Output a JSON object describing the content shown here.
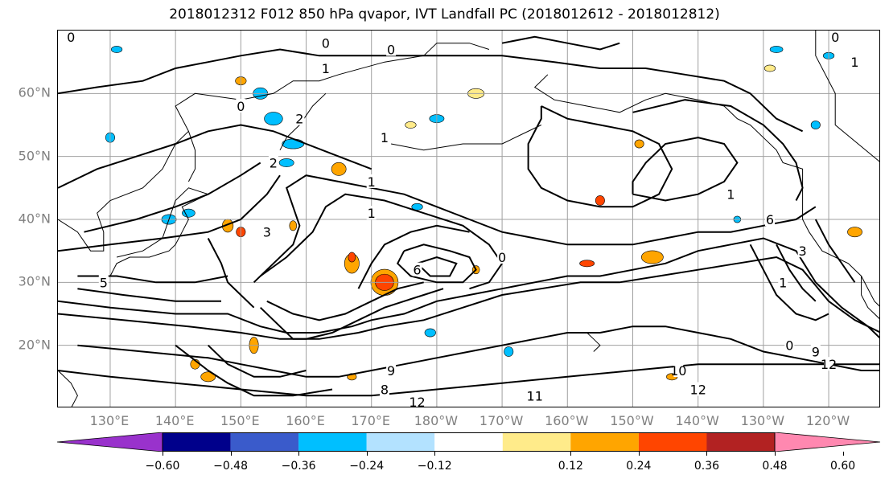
{
  "title": "2018012312 F012 850 hPa qvapor, IVT Landfall PC (2018012612 - 2018012812)",
  "map": {
    "projection": "equirectangular",
    "lon_range": "122°E – 112°W",
    "lat_range": "10°N – 70°N",
    "lat_labels": [
      "60°N",
      "50°N",
      "40°N",
      "30°N",
      "20°N"
    ],
    "lon_labels": [
      "130°E",
      "140°E",
      "150°E",
      "160°E",
      "170°E",
      "180°W",
      "170°W",
      "160°W",
      "150°W",
      "140°W",
      "130°W",
      "120°W"
    ],
    "contour_labels": [
      {
        "text": "0",
        "lon": 124,
        "lat": 69
      },
      {
        "text": "0",
        "lon": 150,
        "lat": 58
      },
      {
        "text": "1",
        "lon": 172,
        "lat": 53
      },
      {
        "text": "2",
        "lon": 159,
        "lat": 56
      },
      {
        "text": "2",
        "lon": 155,
        "lat": 49
      },
      {
        "text": "1",
        "lon": 170,
        "lat": 46
      },
      {
        "text": "1",
        "lon": 170,
        "lat": 41
      },
      {
        "text": "1",
        "lon": 163,
        "lat": 64
      },
      {
        "text": "0",
        "lon": 163,
        "lat": 68
      },
      {
        "text": "0",
        "lon": 173,
        "lat": 67
      },
      {
        "text": "3",
        "lon": 154,
        "lat": 38
      },
      {
        "text": "6",
        "lon": 177,
        "lat": 32
      },
      {
        "text": "0",
        "lon": 190,
        "lat": 34
      },
      {
        "text": "1",
        "lon": 225,
        "lat": 44
      },
      {
        "text": "6",
        "lon": 231,
        "lat": 40
      },
      {
        "text": "3",
        "lon": 236,
        "lat": 35
      },
      {
        "text": "1",
        "lon": 233,
        "lat": 30
      },
      {
        "text": "0",
        "lon": 241,
        "lat": 69
      },
      {
        "text": "1",
        "lon": 244,
        "lat": 65
      },
      {
        "text": "5",
        "lon": 129,
        "lat": 30
      },
      {
        "text": "9",
        "lon": 173,
        "lat": 16
      },
      {
        "text": "8",
        "lon": 172,
        "lat": 13
      },
      {
        "text": "12",
        "lon": 177,
        "lat": 11
      },
      {
        "text": "11",
        "lon": 195,
        "lat": 12
      },
      {
        "text": "10",
        "lon": 217,
        "lat": 16
      },
      {
        "text": "12",
        "lon": 220,
        "lat": 13
      },
      {
        "text": "12",
        "lon": 240,
        "lat": 17
      },
      {
        "text": "9",
        "lon": 238,
        "lat": 19
      },
      {
        "text": "0",
        "lon": 234,
        "lat": 20
      }
    ]
  },
  "colorbar": {
    "ticks": [
      "−0.60",
      "−0.48",
      "−0.36",
      "−0.24",
      "−0.12",
      "0.12",
      "0.24",
      "0.36",
      "0.48",
      "0.60"
    ],
    "colors": [
      "#9932CC",
      "#00008B",
      "#3A5BCB",
      "#00BFFF",
      "#B3E2FF",
      "#FFFFFF",
      "#FFEB8A",
      "#FFA500",
      "#FF4500",
      "#B22222",
      "#FF88B0"
    ]
  }
}
